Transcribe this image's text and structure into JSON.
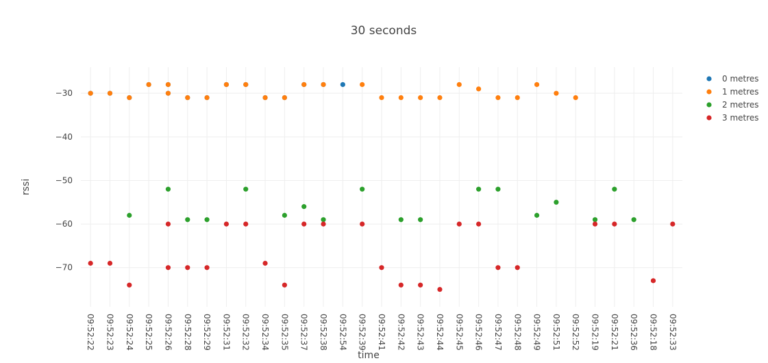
{
  "chart_data": {
    "type": "scatter",
    "title": "30 seconds",
    "xlabel": "time",
    "ylabel": "rssi",
    "categories": [
      "09:52:22",
      "09:52:23",
      "09:52:24",
      "09:52:25",
      "09:52:26",
      "09:52:28",
      "09:52:29",
      "09:52:31",
      "09:52:32",
      "09:52:34",
      "09:52:35",
      "09:52:37",
      "09:52:38",
      "09:52:54",
      "09:52:39",
      "09:52:41",
      "09:52:42",
      "09:52:43",
      "09:52:44",
      "09:52:45",
      "09:52:46",
      "09:52:47",
      "09:52:48",
      "09:52:49",
      "09:52:51",
      "09:52:52",
      "09:52:19",
      "09:52:21",
      "09:52:36",
      "09:52:18",
      "09:52:33"
    ],
    "ylim": [
      -79,
      -24
    ],
    "yticks": [
      -30,
      -40,
      -50,
      -60,
      -70
    ],
    "ytick_labels": [
      "−30",
      "−40",
      "−50",
      "−60",
      "−70"
    ],
    "grid": true,
    "legend_position": "top-right",
    "series": [
      {
        "name": "0 metres",
        "color": "#1f77b4",
        "points": [
          [
            "09:52:22",
            -30
          ],
          [
            "09:52:23",
            -30
          ],
          [
            "09:52:24",
            -31
          ],
          [
            "09:52:25",
            -28
          ],
          [
            "09:52:26",
            -28
          ],
          [
            "09:52:26",
            -30
          ],
          [
            "09:52:28",
            -31
          ],
          [
            "09:52:29",
            -31
          ],
          [
            "09:52:31",
            -28
          ],
          [
            "09:52:32",
            -28
          ],
          [
            "09:52:34",
            -31
          ],
          [
            "09:52:35",
            -31
          ],
          [
            "09:52:37",
            -28
          ],
          [
            "09:52:38",
            -28
          ],
          [
            "09:52:54",
            -28
          ]
        ]
      },
      {
        "name": "1 metres",
        "color": "#ff7f0e",
        "points": [
          [
            "09:52:22",
            -30
          ],
          [
            "09:52:23",
            -30
          ],
          [
            "09:52:24",
            -31
          ],
          [
            "09:52:25",
            -28
          ],
          [
            "09:52:26",
            -28
          ],
          [
            "09:52:26",
            -30
          ],
          [
            "09:52:28",
            -31
          ],
          [
            "09:52:29",
            -31
          ],
          [
            "09:52:31",
            -28
          ],
          [
            "09:52:32",
            -28
          ],
          [
            "09:52:34",
            -31
          ],
          [
            "09:52:35",
            -31
          ],
          [
            "09:52:37",
            -28
          ],
          [
            "09:52:38",
            -28
          ],
          [
            "09:52:39",
            -28
          ],
          [
            "09:52:41",
            -31
          ],
          [
            "09:52:42",
            -31
          ],
          [
            "09:52:43",
            -31
          ],
          [
            "09:52:44",
            -31
          ],
          [
            "09:52:45",
            -28
          ],
          [
            "09:52:46",
            -29
          ],
          [
            "09:52:47",
            -31
          ],
          [
            "09:52:48",
            -31
          ],
          [
            "09:52:49",
            -28
          ],
          [
            "09:52:51",
            -30
          ],
          [
            "09:52:52",
            -31
          ]
        ]
      },
      {
        "name": "2 metres",
        "color": "#2ca02c",
        "points": [
          [
            "09:52:24",
            -58
          ],
          [
            "09:52:26",
            -52
          ],
          [
            "09:52:28",
            -59
          ],
          [
            "09:52:29",
            -59
          ],
          [
            "09:52:32",
            -52
          ],
          [
            "09:52:35",
            -58
          ],
          [
            "09:52:37",
            -56
          ],
          [
            "09:52:38",
            -59
          ],
          [
            "09:52:39",
            -52
          ],
          [
            "09:52:42",
            -59
          ],
          [
            "09:52:43",
            -59
          ],
          [
            "09:52:46",
            -52
          ],
          [
            "09:52:47",
            -52
          ],
          [
            "09:52:49",
            -58
          ],
          [
            "09:52:51",
            -55
          ],
          [
            "09:52:19",
            -59
          ],
          [
            "09:52:21",
            -52
          ],
          [
            "09:52:36",
            -59
          ]
        ]
      },
      {
        "name": "3 metres",
        "color": "#d62728",
        "points": [
          [
            "09:52:22",
            -69
          ],
          [
            "09:52:23",
            -69
          ],
          [
            "09:52:24",
            -74
          ],
          [
            "09:52:26",
            -60
          ],
          [
            "09:52:26",
            -70
          ],
          [
            "09:52:28",
            -70
          ],
          [
            "09:52:29",
            -70
          ],
          [
            "09:52:31",
            -60
          ],
          [
            "09:52:32",
            -60
          ],
          [
            "09:52:34",
            -69
          ],
          [
            "09:52:35",
            -74
          ],
          [
            "09:52:37",
            -60
          ],
          [
            "09:52:38",
            -60
          ],
          [
            "09:52:39",
            -60
          ],
          [
            "09:52:41",
            -70
          ],
          [
            "09:52:42",
            -74
          ],
          [
            "09:52:43",
            -74
          ],
          [
            "09:52:44",
            -75
          ],
          [
            "09:52:45",
            -60
          ],
          [
            "09:52:46",
            -60
          ],
          [
            "09:52:47",
            -70
          ],
          [
            "09:52:48",
            -70
          ],
          [
            "09:52:19",
            -60
          ],
          [
            "09:52:21",
            -60
          ],
          [
            "09:52:18",
            -73
          ],
          [
            "09:52:33",
            -60
          ]
        ]
      }
    ]
  }
}
